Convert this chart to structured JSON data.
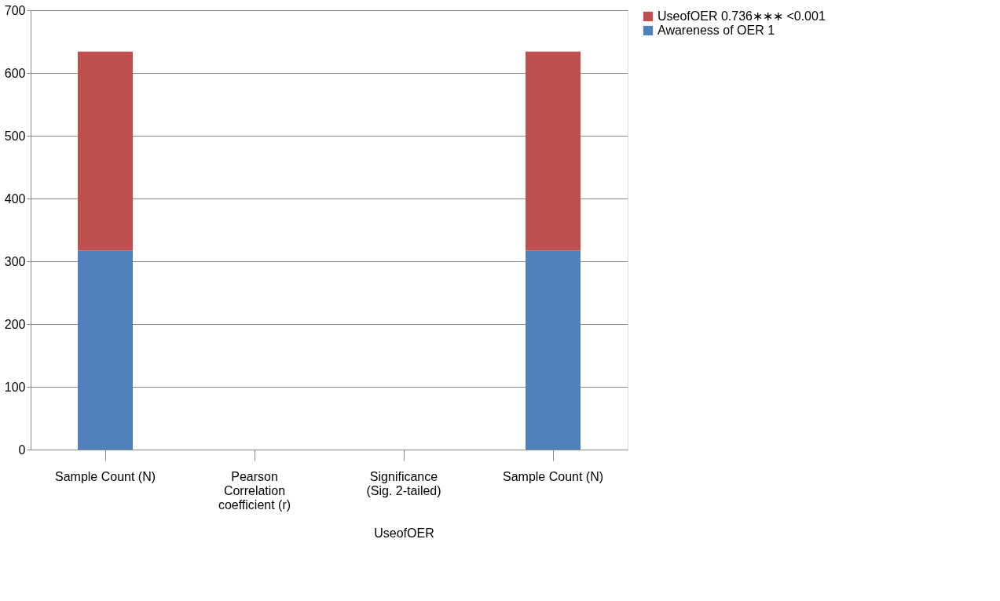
{
  "chart_data": {
    "type": "bar",
    "stacked": true,
    "categories": [
      "Sample Count (N)",
      "Pearson Correlation coefficient (r)",
      "Significance (Sig. 2-tailed)",
      "Sample Count (N)"
    ],
    "xlabel": "UseofOER",
    "series": [
      {
        "name": "Awareness of OER 1",
        "color": "#4f81bd",
        "values": [
          317,
          null,
          0,
          317
        ]
      },
      {
        "name": "UseofOER 0.736∗∗∗ <0.001",
        "color": "#c0504d",
        "values": [
          317,
          0,
          null,
          317
        ]
      }
    ],
    "ylim": [
      0,
      700
    ],
    "yticks": [
      0,
      100,
      200,
      300,
      400,
      500,
      600,
      700
    ],
    "grid": "y",
    "legend": "right"
  }
}
